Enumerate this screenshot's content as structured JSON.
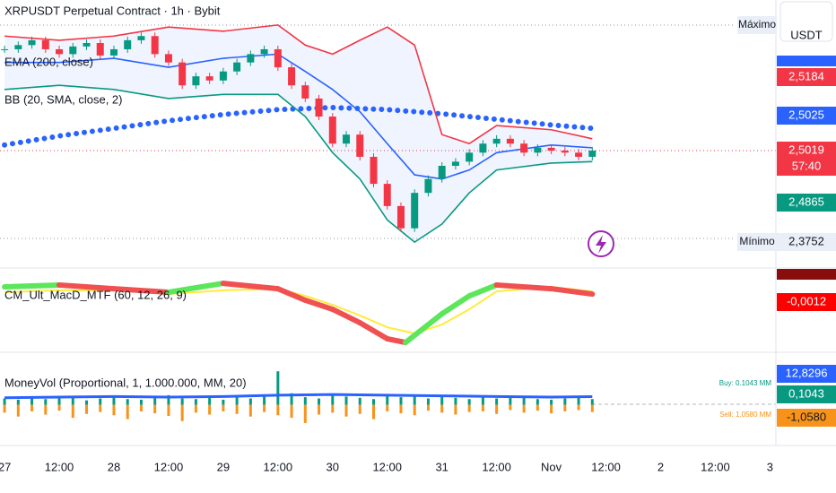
{
  "chart_data": [
    {
      "type": "candlestick",
      "title": "XRPUSDT Perpetual Contract · 1h · Bybit",
      "up_color": "#089981",
      "down_color": "#f23645",
      "xlim": [
        -1,
        169.3
      ],
      "ylim": [
        2.334,
        2.719
      ],
      "xticks": [
        {
          "value": 0,
          "label": "27"
        },
        {
          "value": 12,
          "label": "12:00"
        },
        {
          "value": 24,
          "label": "28"
        },
        {
          "value": 36,
          "label": "12:00"
        },
        {
          "value": 48,
          "label": "29"
        },
        {
          "value": 60,
          "label": "12:00"
        },
        {
          "value": 72,
          "label": "30"
        },
        {
          "value": 84,
          "label": "12:00"
        },
        {
          "value": 96,
          "label": "31"
        },
        {
          "value": 108,
          "label": "12:00"
        },
        {
          "value": 120,
          "label": "Nov"
        },
        {
          "value": 132,
          "label": "12:00"
        },
        {
          "value": 144,
          "label": "2"
        },
        {
          "value": 156,
          "label": "12:00"
        },
        {
          "value": 168,
          "label": "3"
        }
      ],
      "x": [
        0,
        3,
        6,
        9,
        12,
        15,
        18,
        21,
        24,
        27,
        30,
        33,
        36,
        39,
        42,
        45,
        48,
        51,
        54,
        57,
        60,
        63,
        66,
        69,
        72,
        75,
        78,
        81,
        84,
        87,
        90,
        93,
        96,
        99,
        102,
        105,
        108,
        111,
        114,
        117,
        120,
        123,
        126,
        129
      ],
      "values": [
        2.648,
        2.654,
        2.661,
        2.648,
        2.641,
        2.652,
        2.657,
        2.639,
        2.648,
        2.661,
        2.667,
        2.641,
        2.629,
        2.596,
        2.609,
        2.603,
        2.616,
        2.629,
        2.641,
        2.648,
        2.622,
        2.596,
        2.577,
        2.551,
        2.512,
        2.525,
        2.493,
        2.454,
        2.422,
        2.39,
        2.441,
        2.461,
        2.48,
        2.486,
        2.499,
        2.512,
        2.519,
        2.512,
        2.499,
        2.506,
        2.502,
        2.499,
        2.493,
        2.502
      ],
      "series": [
        {
          "name": "EMA (200, close)",
          "color": "#2962ff",
          "style": "dotted",
          "x": [
            0,
            12,
            24,
            36,
            48,
            60,
            72,
            84,
            96,
            108,
            120,
            129
          ],
          "values": [
            2.51,
            2.523,
            2.534,
            2.545,
            2.554,
            2.561,
            2.564,
            2.561,
            2.555,
            2.547,
            2.539,
            2.534
          ]
        },
        {
          "name": "BB (20, SMA, close, 2)",
          "colors": {
            "upper": "#f23645",
            "basis": "#2962ff",
            "lower": "#089981",
            "fill": "#2962ff"
          },
          "x": [
            0,
            12,
            24,
            36,
            48,
            60,
            66,
            72,
            78,
            84,
            90,
            96,
            102,
            108,
            120,
            129
          ],
          "upper": [
            2.667,
            2.661,
            2.667,
            2.68,
            2.674,
            2.683,
            2.654,
            2.641,
            2.661,
            2.68,
            2.654,
            2.525,
            2.512,
            2.538,
            2.532,
            2.519
          ],
          "basis": [
            2.629,
            2.629,
            2.635,
            2.622,
            2.635,
            2.641,
            2.616,
            2.59,
            2.558,
            2.512,
            2.467,
            2.461,
            2.474,
            2.499,
            2.51,
            2.506
          ],
          "lower": [
            2.59,
            2.596,
            2.59,
            2.577,
            2.583,
            2.583,
            2.551,
            2.499,
            2.461,
            2.402,
            2.37,
            2.396,
            2.441,
            2.474,
            2.484,
            2.486
          ]
        }
      ],
      "axis_labels": [
        "2,5184",
        "2,5025",
        "2,5019",
        "57:40",
        "2,4865",
        "2,3752"
      ],
      "high_label": "Máximo",
      "low_label": "Mínimo",
      "currency": "USDT"
    },
    {
      "type": "line",
      "title": "CM_Ult_MacD_MTF (60, 12, 26, 9)",
      "ylim": [
        -0.03,
        0.01
      ],
      "series": [
        {
          "color": "#ffeb3b",
          "x": [
            0,
            12,
            24,
            36,
            48,
            60,
            66,
            72,
            78,
            84,
            90,
            96,
            102,
            108,
            120,
            129
          ],
          "values": [
            -0.0013,
            -0.0004,
            -0.0004,
            -0.0022,
            -0.0004,
            0.0004,
            -0.0031,
            -0.0074,
            -0.0126,
            -0.0183,
            -0.0213,
            -0.017,
            -0.0096,
            -0.0009,
            0.0013,
            -0.0009
          ]
        },
        {
          "up_color": "#5ce65c",
          "down_color": "#f05050",
          "x": [
            0,
            12,
            24,
            36,
            48,
            60,
            66,
            72,
            78,
            84,
            88,
            96,
            102,
            108,
            120,
            129
          ],
          "values": [
            0.0013,
            0.0022,
            0.0004,
            -0.0013,
            0.003,
            0.0004,
            -0.0052,
            -0.0096,
            -0.0161,
            -0.0239,
            -0.0257,
            -0.0118,
            -0.0031,
            0.0022,
            0.0004,
            -0.0022
          ]
        }
      ],
      "axis_labels": [
        "-0,0012"
      ]
    },
    {
      "type": "bar",
      "title": "MoneyVol (Proportional, 1, 1.000.000, MM, 20)",
      "ylim": [
        -60,
        80
      ],
      "x": [
        0,
        3,
        6,
        9,
        12,
        15,
        18,
        21,
        24,
        27,
        30,
        33,
        36,
        39,
        42,
        45,
        48,
        51,
        54,
        57,
        60,
        63,
        66,
        69,
        72,
        75,
        78,
        81,
        84,
        87,
        90,
        93,
        96,
        99,
        102,
        105,
        108,
        111,
        114,
        117,
        120,
        123,
        126,
        129
      ],
      "series": [
        {
          "color": "#089981",
          "values": [
            10,
            8,
            12,
            9,
            14,
            11,
            7,
            10,
            13,
            9,
            8,
            12,
            15,
            10,
            9,
            11,
            8,
            12,
            10,
            14,
            52,
            18,
            12,
            10,
            15,
            13,
            11,
            9,
            14,
            12,
            16,
            10,
            13,
            11,
            9,
            12,
            10,
            14,
            11,
            9,
            8,
            10,
            12,
            9
          ]
        },
        {
          "color": "#f7931a",
          "values": [
            -12,
            -18,
            -10,
            -15,
            -9,
            -20,
            -14,
            -11,
            -16,
            -22,
            -10,
            -13,
            -17,
            -25,
            -12,
            -15,
            -10,
            -14,
            -18,
            -11,
            -16,
            -20,
            -28,
            -15,
            -12,
            -18,
            -14,
            -22,
            -10,
            -13,
            -16,
            -9,
            -12,
            -15,
            -11,
            -10,
            -14,
            -8,
            -12,
            -9,
            -13,
            -10,
            -8,
            -11
          ]
        },
        {
          "color": "#2962ff",
          "style": "line",
          "x": [
            0,
            12,
            24,
            36,
            48,
            60,
            72,
            84,
            96,
            108,
            120,
            129
          ],
          "values": [
            11,
            12,
            13,
            12,
            13,
            15,
            16,
            15,
            14,
            13,
            12,
            12.8
          ]
        }
      ],
      "annotations": [
        "Buy: 0.1043 MM",
        "Sell: 1.0580 MM"
      ],
      "axis_labels": [
        "12,8296",
        "0,1043",
        "-1,0580"
      ]
    }
  ]
}
